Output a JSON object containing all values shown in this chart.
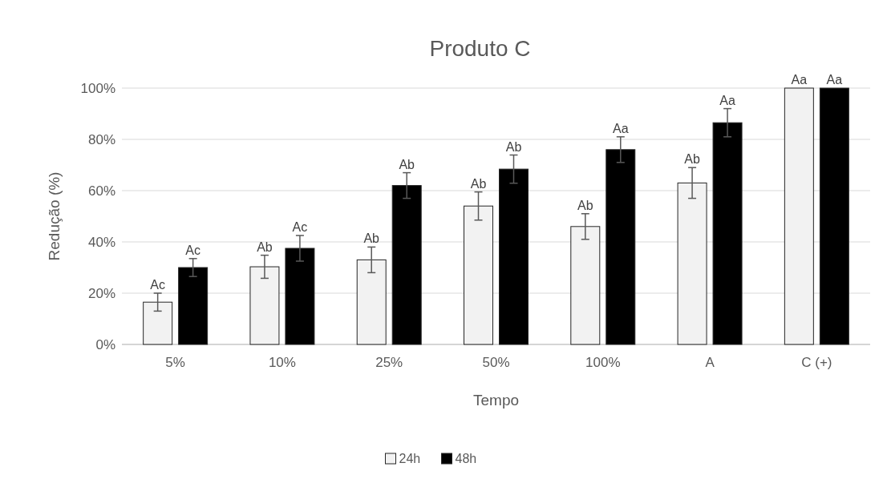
{
  "chart_data": {
    "type": "bar",
    "title": "Produto C",
    "xlabel": "Tempo",
    "ylabel": "Redução (%)",
    "categories": [
      "5%",
      "10%",
      "25%",
      "50%",
      "100%",
      "A",
      "C (+)"
    ],
    "series": [
      {
        "name": "24h",
        "color": "#f2f2f2",
        "values": [
          16.5,
          30.3,
          33,
          54,
          46,
          63,
          100
        ],
        "errors": [
          3.5,
          4.5,
          5,
          5.5,
          5,
          6,
          null
        ],
        "value_labels": [
          "Ac",
          "Ab",
          "Ab",
          "Ab",
          "Ab",
          "Ab",
          "Aa"
        ]
      },
      {
        "name": "48h",
        "color": "#000000",
        "values": [
          30,
          37.5,
          62,
          68.4,
          76,
          86.5,
          100
        ],
        "errors": [
          3.5,
          5,
          5,
          5.5,
          5,
          5.5,
          null
        ],
        "value_labels": [
          "Ac",
          "Ac",
          "Ab",
          "Ab",
          "Aa",
          "Aa",
          "Aa"
        ]
      }
    ],
    "ylim": [
      0,
      100
    ],
    "yticks": [
      {
        "value": 0,
        "label": "0%"
      },
      {
        "value": 20,
        "label": "20%"
      },
      {
        "value": 40,
        "label": "40%"
      },
      {
        "value": 60,
        "label": "60%"
      },
      {
        "value": 80,
        "label": "80%"
      },
      {
        "value": 100,
        "label": "100%"
      }
    ],
    "grid": "y",
    "legend": "bottom"
  }
}
